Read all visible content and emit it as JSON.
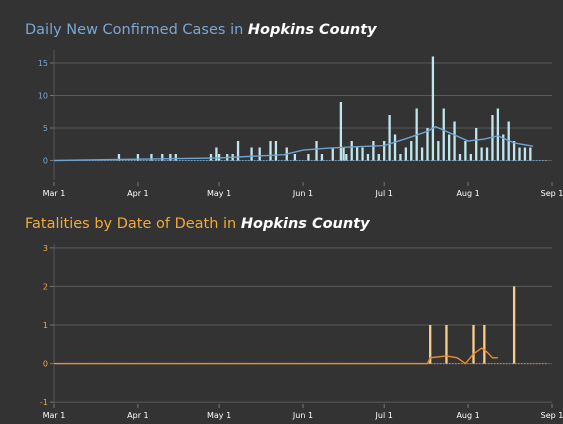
{
  "chart_data": [
    {
      "type": "bar",
      "title_prefix": "Daily New Confirmed Cases in ",
      "title_emphasis": "Hopkins County",
      "xlabel": "",
      "ylabel": "",
      "x_tick_labels": [
        "Mar 1",
        "Apr 1",
        "May 1",
        "Jun 1",
        "Jul 1",
        "Aug 1",
        "Sep 1"
      ],
      "y_tick_labels": [
        "0",
        "5",
        "10",
        "15"
      ],
      "ylim": [
        -3,
        17
      ],
      "grid": true,
      "bar_color": "#bfe6ee",
      "line_color": "#6fa3d2",
      "axis_text_color": "#7aa6d6",
      "series": [
        {
          "name": "",
          "x": [
            "2020-03-25",
            "2020-04-01",
            "2020-04-06",
            "2020-04-10",
            "2020-04-13",
            "2020-04-15",
            "2020-04-28",
            "2020-04-30",
            "2020-05-01",
            "2020-05-04",
            "2020-05-06",
            "2020-05-08",
            "2020-05-13",
            "2020-05-16",
            "2020-05-20",
            "2020-05-22",
            "2020-05-26",
            "2020-05-29",
            "2020-06-03",
            "2020-06-06",
            "2020-06-08",
            "2020-06-12",
            "2020-06-15",
            "2020-06-16",
            "2020-06-17",
            "2020-06-19",
            "2020-06-21",
            "2020-06-23",
            "2020-06-25",
            "2020-06-27",
            "2020-06-29",
            "2020-07-01",
            "2020-07-03",
            "2020-07-05",
            "2020-07-07",
            "2020-07-09",
            "2020-07-11",
            "2020-07-13",
            "2020-07-15",
            "2020-07-17",
            "2020-07-19",
            "2020-07-21",
            "2020-07-23",
            "2020-07-25",
            "2020-07-27",
            "2020-07-29",
            "2020-07-31",
            "2020-08-02",
            "2020-08-04",
            "2020-08-06",
            "2020-08-08",
            "2020-08-10",
            "2020-08-12",
            "2020-08-14",
            "2020-08-16",
            "2020-08-18",
            "2020-08-20",
            "2020-08-22",
            "2020-08-24"
          ],
          "values": [
            1,
            1,
            1,
            1,
            1,
            1,
            1,
            2,
            1,
            1,
            1,
            3,
            2,
            2,
            3,
            3,
            2,
            1,
            1,
            3,
            1,
            2,
            9,
            2,
            1,
            3,
            2,
            2,
            1,
            3,
            1,
            3,
            7,
            4,
            1,
            2,
            3,
            8,
            2,
            5,
            16,
            3,
            8,
            4,
            6,
            1,
            3,
            1,
            5,
            2,
            2,
            7,
            8,
            4,
            6,
            3,
            2,
            2,
            2
          ]
        },
        {
          "name": "",
          "x": [
            "2020-03-01",
            "2020-04-01",
            "2020-05-01",
            "2020-05-25",
            "2020-06-01",
            "2020-06-10",
            "2020-06-20",
            "2020-07-01",
            "2020-07-10",
            "2020-07-17",
            "2020-07-20",
            "2020-07-25",
            "2020-08-01",
            "2020-08-07",
            "2020-08-12",
            "2020-08-18",
            "2020-08-25"
          ],
          "values": [
            0,
            0.2,
            0.4,
            0.9,
            1.6,
            1.9,
            2.1,
            2.3,
            3.5,
            4.5,
            5.2,
            4.3,
            3.0,
            3.3,
            3.8,
            2.7,
            2.2
          ]
        }
      ]
    },
    {
      "type": "bar",
      "title_prefix": "Fatalities by Date of Death in ",
      "title_emphasis": "Hopkins County",
      "xlabel": "",
      "ylabel": "",
      "x_tick_labels": [
        "Mar 1",
        "Apr 1",
        "May 1",
        "Jun 1",
        "Jul 1",
        "Aug 1",
        "Sep 1"
      ],
      "y_tick_labels": [
        "-1",
        "0",
        "1",
        "2",
        "3"
      ],
      "ylim": [
        -1.1,
        3.1
      ],
      "grid": true,
      "bar_color": "#f6cf8c",
      "line_color": "#f08a2c",
      "axis_text_color": "#f2a93b",
      "series": [
        {
          "name": "",
          "x": [
            "2020-07-18",
            "2020-07-24",
            "2020-08-03",
            "2020-08-07",
            "2020-08-18"
          ],
          "values": [
            1,
            1,
            1,
            1,
            2
          ]
        },
        {
          "name": "",
          "x": [
            "2020-03-01",
            "2020-07-17",
            "2020-07-18",
            "2020-07-24",
            "2020-07-28",
            "2020-07-31",
            "2020-08-03",
            "2020-08-06",
            "2020-08-08",
            "2020-08-10",
            "2020-08-12"
          ],
          "values": [
            0,
            0,
            0.15,
            0.2,
            0.15,
            0.0,
            0.25,
            0.4,
            0.3,
            0.15,
            0.15
          ]
        }
      ]
    }
  ]
}
